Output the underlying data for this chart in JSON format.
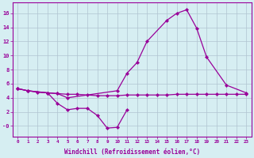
{
  "xlabel": "Windchill (Refroidissement éolien,°C)",
  "background_color": "#d6eef2",
  "grid_color": "#b0c4d0",
  "line_color": "#990099",
  "ylim": [
    -1.5,
    17.5
  ],
  "xlim": [
    -0.5,
    23.5
  ],
  "line1_x": [
    0,
    1,
    2,
    3,
    4,
    5,
    6,
    7,
    8,
    9,
    10,
    11,
    12,
    13,
    14,
    15,
    16,
    17,
    18,
    19,
    20,
    21,
    22,
    23
  ],
  "line1_y": [
    5.3,
    5.0,
    4.8,
    4.7,
    4.6,
    4.5,
    4.5,
    4.4,
    4.3,
    4.3,
    4.3,
    4.4,
    4.4,
    4.4,
    4.4,
    4.4,
    4.5,
    4.5,
    4.5,
    4.5,
    4.5,
    4.5,
    4.5,
    4.5
  ],
  "line2_x": [
    0,
    1,
    3,
    4,
    5,
    6,
    7,
    8,
    9,
    10,
    11
  ],
  "line2_y": [
    5.3,
    5.0,
    4.7,
    3.2,
    2.3,
    2.5,
    2.5,
    1.5,
    -0.3,
    -0.2,
    2.3
  ],
  "line3_x": [
    0,
    1,
    3,
    4,
    5,
    10,
    11,
    12,
    13,
    15,
    16,
    17,
    18,
    19,
    21,
    23
  ],
  "line3_y": [
    5.3,
    5.0,
    4.7,
    4.6,
    4.0,
    5.0,
    7.5,
    9.0,
    12.0,
    15.0,
    16.0,
    16.5,
    13.9,
    9.8,
    5.8,
    4.7
  ]
}
